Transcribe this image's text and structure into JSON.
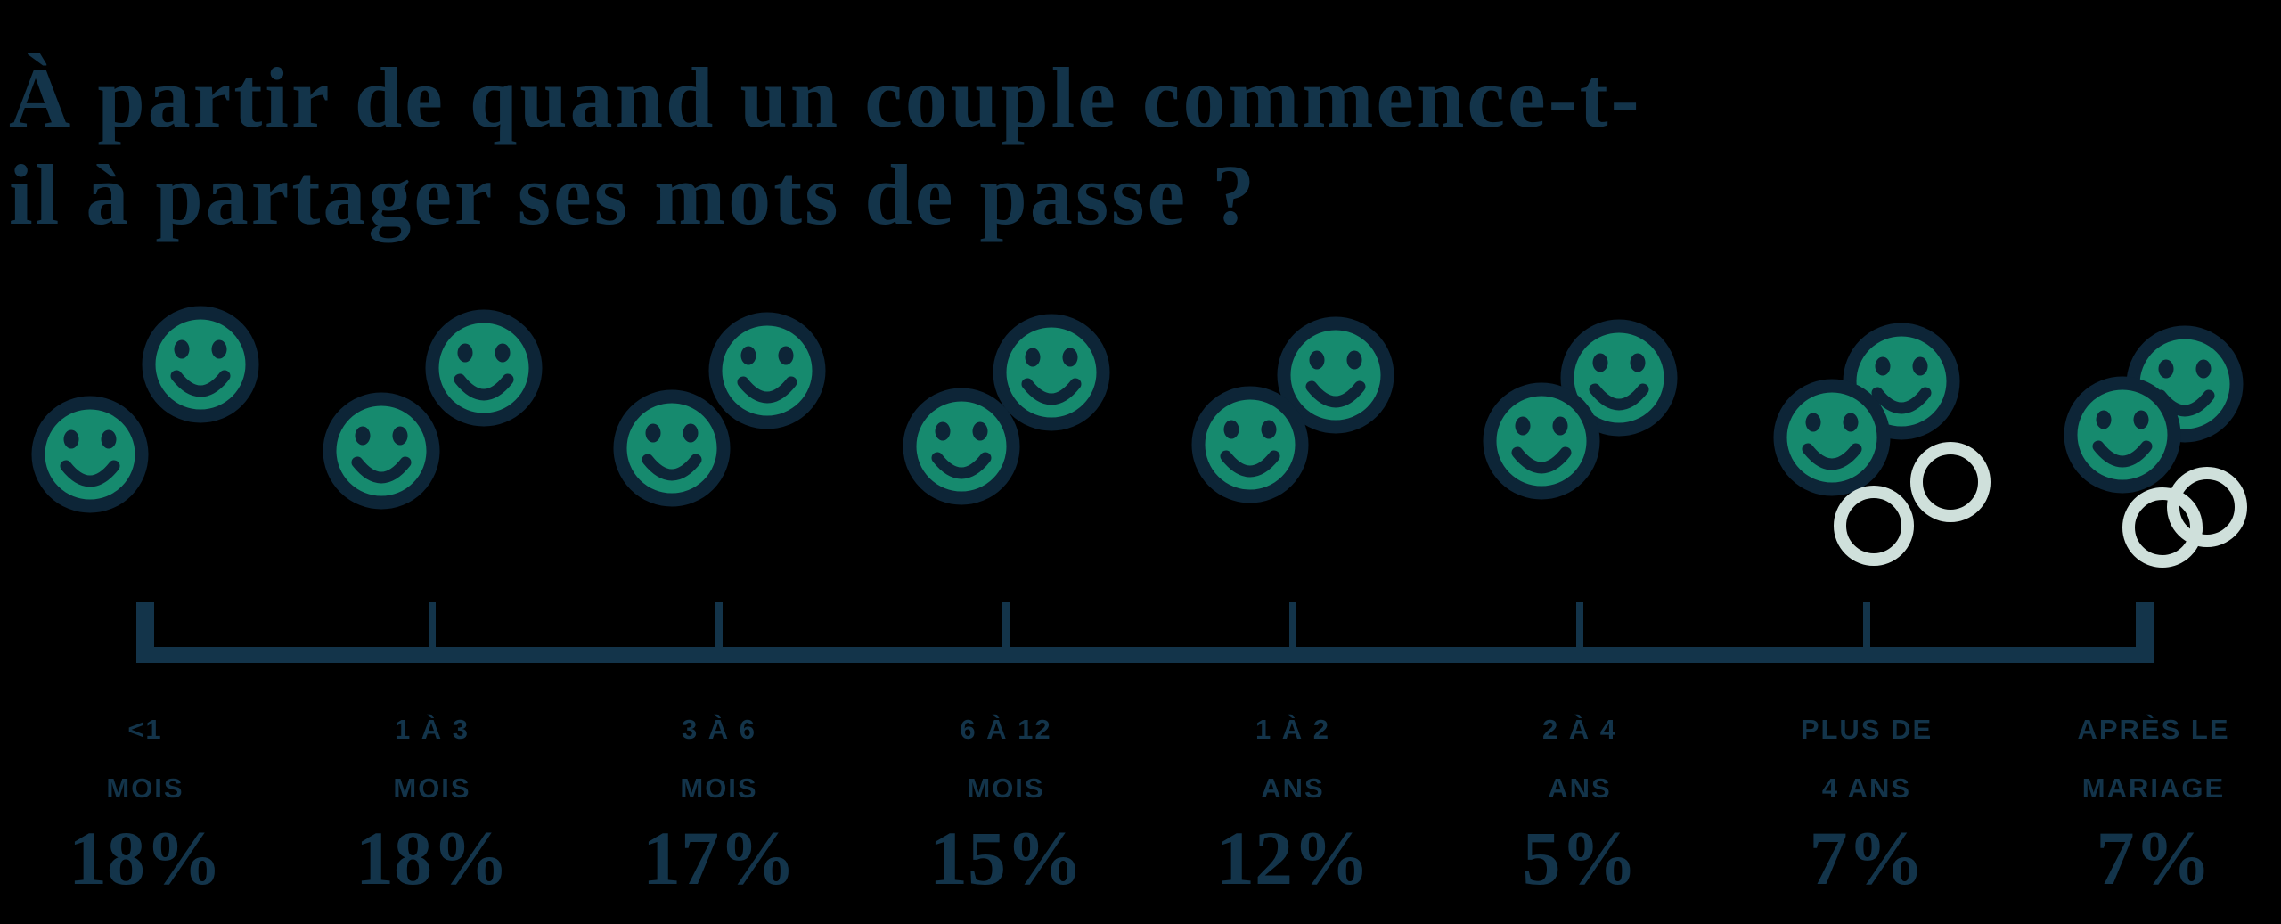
{
  "title": {
    "line1": "À partir de quand un couple commence-t-",
    "line2": "il à partager ses mots de passe ?"
  },
  "colors": {
    "background": "#000000",
    "text_navy": "#13344a",
    "icon_navy": "#0d2537",
    "face_green": "#168a6e",
    "ring_mint": "#cfe0db"
  },
  "chart_data": {
    "type": "bar",
    "variant": "pictogram",
    "title": "À partir de quand un couple commence-t-il à partager ses mots de passe ?",
    "unit": "%",
    "categories": [
      "<1 mois",
      "1 à 3 mois",
      "3 à 6 mois",
      "6 à 12 mois",
      "1 à 2 ans",
      "2 à 4 ans",
      "Plus de 4 ans",
      "Après le mariage"
    ],
    "values": [
      18,
      18,
      17,
      15,
      12,
      5,
      7,
      7
    ],
    "labels": [
      {
        "line1": "<1",
        "line2": "MOIS",
        "pct": "18%"
      },
      {
        "line1": "1 À 3",
        "line2": "MOIS",
        "pct": "18%"
      },
      {
        "line1": "3 À 6",
        "line2": "MOIS",
        "pct": "17%"
      },
      {
        "line1": "6 À 12",
        "line2": "MOIS",
        "pct": "15%"
      },
      {
        "line1": "1 À 2",
        "line2": "ANS",
        "pct": "12%"
      },
      {
        "line1": "2 À 4",
        "line2": "ANS",
        "pct": "5%"
      },
      {
        "line1": "PLUS DE",
        "line2": "4 ANS",
        "pct": "7%"
      },
      {
        "line1": "APRÈS LE",
        "line2": "MARIAGE",
        "pct": "7%"
      }
    ],
    "icon_notes": {
      "pairs": "two green smiley faces per category, moving progressively closer until overlapping",
      "rings_separate": "two separate pale rings next to 'Plus de 4 ans'",
      "rings_linked": "two interlocked pale rings next to 'Après le mariage'"
    },
    "legend_position": "none",
    "grid": false,
    "axis": "bracket ruler with a tick under each category"
  }
}
